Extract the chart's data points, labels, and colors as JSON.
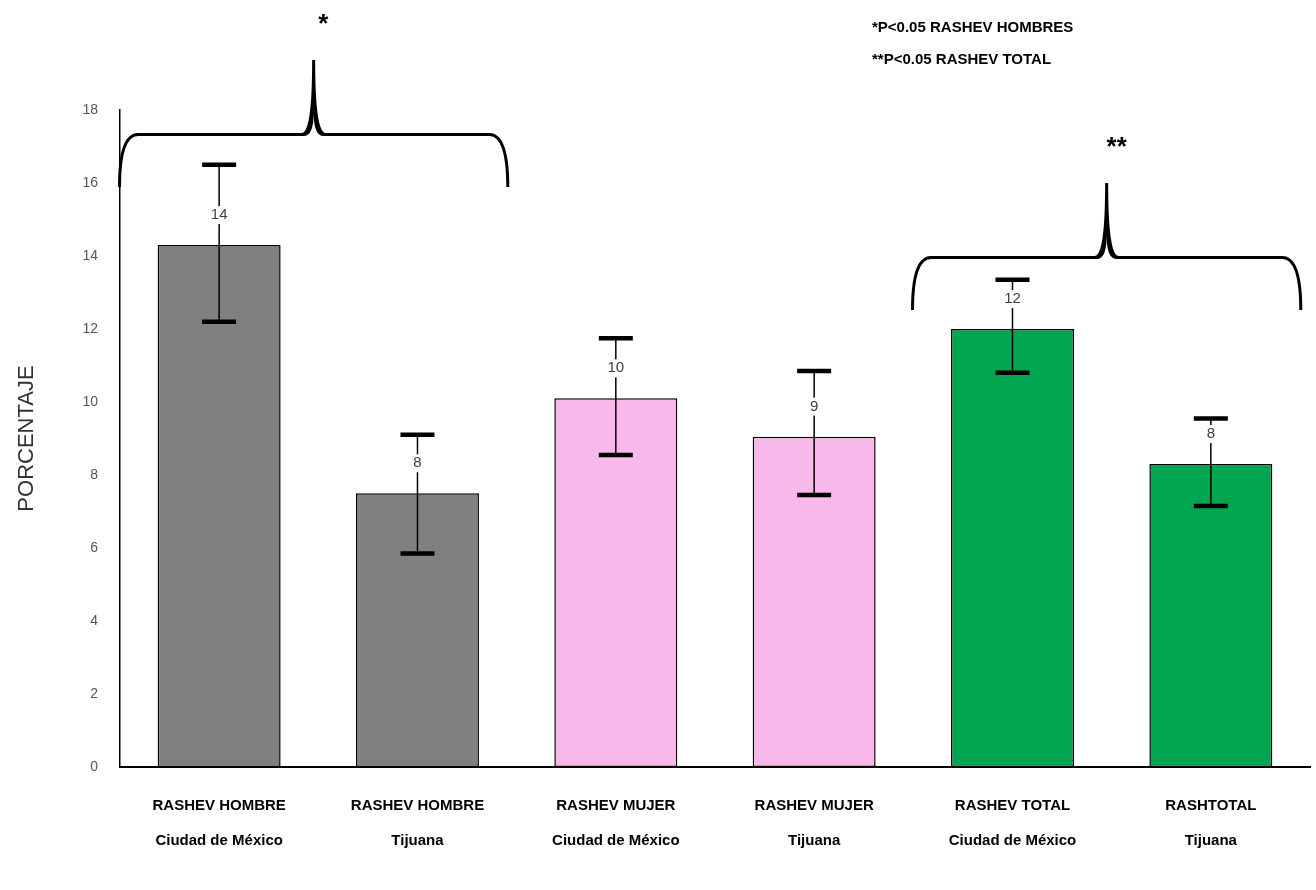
{
  "chart_data": {
    "type": "bar",
    "categories": [
      "RASHEV HOMBRE\nCiudad de México",
      "RASHEV HOMBRE\nTijuana",
      "RASHEV MUJER\nCiudad de México",
      "RASHEV MUJER\nTijuana",
      "RASHEV TOTAL\nCiudad de México",
      "RASHTOTAL\nTijuana"
    ],
    "values": [
      14.3,
      7.5,
      10.1,
      9.05,
      12,
      8.3
    ],
    "value_labels": [
      "14",
      "8",
      "10",
      "9",
      "12",
      "8"
    ],
    "errors": [
      [
        12.2,
        16.5
      ],
      [
        5.85,
        9.1
      ],
      [
        8.55,
        11.75
      ],
      [
        7.45,
        10.85
      ],
      [
        10.8,
        13.35
      ],
      [
        7.15,
        9.55
      ]
    ],
    "colors": [
      "#808080",
      "#808080",
      "#f9b8ea",
      "#f9b8ea",
      "#00a550",
      "#00a550"
    ],
    "ylabel": "PORCENTAJE",
    "ylim": [
      0,
      18
    ],
    "yticks": [
      0,
      2,
      4,
      6,
      8,
      10,
      12,
      14,
      16,
      18
    ],
    "grid": false,
    "legend": false,
    "annotations": [
      "*P<0.05 RASHEV HOMBRES",
      "**P<0.05 RASHEV TOTAL",
      "*",
      "**"
    ]
  }
}
